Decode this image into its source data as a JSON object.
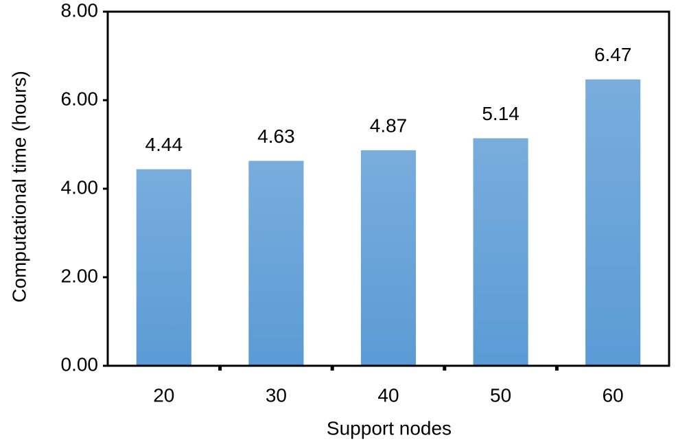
{
  "chart_data": {
    "type": "bar",
    "x_label": "Support nodes",
    "y_label": "Computational time (hours)",
    "categories": [
      "20",
      "30",
      "40",
      "50",
      "60"
    ],
    "values": [
      4.44,
      4.63,
      4.87,
      5.14,
      6.47
    ],
    "color": "#5b9bd5",
    "ylim": [
      0,
      8
    ],
    "yticks": [
      {
        "value": 0,
        "label": "0.00"
      },
      {
        "value": 2,
        "label": "2.00"
      },
      {
        "value": 4,
        "label": "4.00"
      },
      {
        "value": 6,
        "label": "6.00"
      },
      {
        "value": 8,
        "label": "8.00"
      }
    ],
    "grid": false
  }
}
